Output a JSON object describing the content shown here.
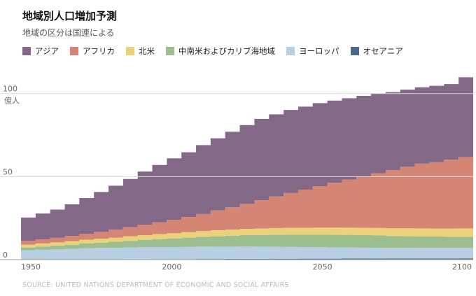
{
  "title": "地域別人口増加予測",
  "subtitle": "地域の区分は国連による",
  "source": "SOURCE: UNITED NATIONS DEPARTMENT OF ECONOMIC AND SOCIAL AFFAIRS",
  "chart_data": {
    "type": "area",
    "stacked": true,
    "step": true,
    "x_start": 1950,
    "x_interval": 5,
    "xlim": [
      1950,
      2100
    ],
    "ylim": [
      0,
      110
    ],
    "y_unit_label": "億人",
    "x_tick_labels": [
      "1950",
      "2000",
      "2050",
      "2100"
    ],
    "y_tick_labels": [
      "100",
      "50",
      "0"
    ],
    "y_tick_values": [
      100,
      50,
      0
    ],
    "legend_position": "top",
    "grid": true,
    "x": [
      1950,
      1955,
      1960,
      1965,
      1970,
      1975,
      1980,
      1985,
      1990,
      1995,
      2000,
      2005,
      2010,
      2015,
      2020,
      2025,
      2030,
      2035,
      2040,
      2045,
      2050,
      2055,
      2060,
      2065,
      2070,
      2075,
      2080,
      2085,
      2090,
      2095,
      2100
    ],
    "series": [
      {
        "name": "オセアニア",
        "color": "#4a6890",
        "values": [
          0.13,
          0.14,
          0.16,
          0.18,
          0.19,
          0.21,
          0.23,
          0.25,
          0.27,
          0.29,
          0.31,
          0.34,
          0.36,
          0.39,
          0.42,
          0.45,
          0.48,
          0.51,
          0.54,
          0.56,
          0.57,
          0.59,
          0.61,
          0.63,
          0.65,
          0.67,
          0.68,
          0.69,
          0.7,
          0.71,
          0.72
        ]
      },
      {
        "name": "ヨーロッパ",
        "color": "#b8cfe3",
        "values": [
          5.5,
          5.8,
          6.0,
          6.3,
          6.6,
          6.8,
          6.9,
          7.1,
          7.2,
          7.3,
          7.3,
          7.3,
          7.4,
          7.4,
          7.4,
          7.4,
          7.3,
          7.2,
          7.1,
          7.0,
          6.9,
          6.8,
          6.7,
          6.6,
          6.5,
          6.4,
          6.4,
          6.3,
          6.3,
          6.3,
          6.3
        ]
      },
      {
        "name": "中南米およびカリブ海地域",
        "color": "#9cbe90",
        "values": [
          1.7,
          1.9,
          2.2,
          2.5,
          2.9,
          3.2,
          3.6,
          4.0,
          4.5,
          4.8,
          5.2,
          5.6,
          6.0,
          6.3,
          6.6,
          6.9,
          7.1,
          7.3,
          7.4,
          7.5,
          7.6,
          7.6,
          7.6,
          7.5,
          7.4,
          7.2,
          7.1,
          7.0,
          6.9,
          6.8,
          6.8
        ]
      },
      {
        "name": "北米",
        "color": "#ebd27a",
        "values": [
          1.7,
          1.9,
          2.0,
          2.2,
          2.3,
          2.4,
          2.5,
          2.7,
          2.8,
          3.0,
          3.1,
          3.3,
          3.4,
          3.6,
          3.7,
          3.8,
          3.9,
          4.0,
          4.1,
          4.1,
          4.2,
          4.3,
          4.3,
          4.4,
          4.5,
          4.6,
          4.7,
          4.8,
          4.8,
          4.9,
          5.0
        ]
      },
      {
        "name": "アフリカ",
        "color": "#d48573",
        "values": [
          2.3,
          2.5,
          2.8,
          3.1,
          3.6,
          4.1,
          4.8,
          5.5,
          6.3,
          7.1,
          8.1,
          9.1,
          10.3,
          11.9,
          13.4,
          15.0,
          17.0,
          19.0,
          21.0,
          23.0,
          25.0,
          27.0,
          29.0,
          31.0,
          33.0,
          35.0,
          37.0,
          39.0,
          40.0,
          41.5,
          43.0
        ]
      },
      {
        "name": "アジア",
        "color": "#836888",
        "values": [
          14.0,
          15.5,
          17.0,
          19.0,
          21.5,
          24.0,
          26.5,
          29.0,
          32.0,
          34.5,
          37.0,
          39.0,
          41.5,
          43.5,
          45.5,
          47.5,
          49.0,
          49.5,
          50.0,
          50.0,
          50.0,
          49.5,
          49.0,
          48.5,
          48.0,
          47.0,
          46.5,
          46.0,
          46.0,
          45.5,
          48.0
        ]
      }
    ]
  }
}
